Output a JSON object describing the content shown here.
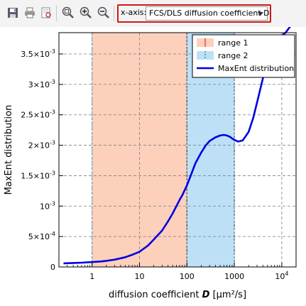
{
  "toolbar": {
    "buttons": [
      {
        "name": "save-icon"
      },
      {
        "name": "print-icon"
      },
      {
        "name": "print-preview-icon"
      },
      {
        "name": "zoom-fit-icon"
      },
      {
        "name": "zoom-in-icon"
      },
      {
        "name": "zoom-out-icon"
      }
    ],
    "xaxis_label": "x-axis:",
    "xaxis_value": "FCS/DLS diffusion coefficient D",
    "highlight_color": "#d01818"
  },
  "chart_data": {
    "type": "line",
    "xlabel_prefix": "diffusion coefficient ",
    "xlabel_var": "D",
    "xlabel_unit": " [µm²/s]",
    "ylabel": "MaxEnt distribution",
    "x_scale": "log",
    "xlim": [
      0.2,
      20000
    ],
    "ylim": [
      0,
      0.00385
    ],
    "xticks": [
      {
        "value": 1,
        "label": "1"
      },
      {
        "value": 10,
        "label": "10"
      },
      {
        "value": 100,
        "label": "100"
      },
      {
        "value": 1000,
        "label": "1000"
      },
      {
        "value": 10000,
        "label": "10",
        "sup": "4"
      }
    ],
    "yticks": [
      {
        "value": 0,
        "label": "0",
        "sup": ""
      },
      {
        "value": 0.0005,
        "label": "5×10",
        "sup": "-4"
      },
      {
        "value": 0.001,
        "label": "10",
        "sup": "-3"
      },
      {
        "value": 0.0015,
        "label": "1.5×10",
        "sup": "-3"
      },
      {
        "value": 0.002,
        "label": "2×10",
        "sup": "-3"
      },
      {
        "value": 0.0025,
        "label": "2.5×10",
        "sup": "-3"
      },
      {
        "value": 0.003,
        "label": "3×10",
        "sup": "-3"
      },
      {
        "value": 0.0035,
        "label": "3.5×10",
        "sup": "-3"
      }
    ],
    "grid": true,
    "legend_position": "top-right",
    "ranges": [
      {
        "name": "range 1",
        "x0": 1,
        "x1": 100,
        "fill": "#fdd0bc",
        "edge": "#e05050"
      },
      {
        "name": "range 2",
        "x0": 100,
        "x1": 1000,
        "fill": "#bde0f7",
        "edge": "#2a9a90"
      }
    ],
    "series": [
      {
        "name": "MaxEnt distribution",
        "color": "#0000e0",
        "x": [
          0.25,
          0.4,
          0.6,
          1,
          1.5,
          2,
          3,
          5,
          7,
          10,
          15,
          20,
          30,
          40,
          50,
          60,
          70,
          80,
          100,
          120,
          150,
          200,
          250,
          300,
          400,
          500,
          600,
          700,
          800,
          900,
          1000,
          1200,
          1500,
          2000,
          2500,
          3000,
          4000,
          5000,
          6000,
          7000,
          8000,
          10000,
          12000,
          15000,
          18000
        ],
        "y": [
          6e-05,
          6.5e-05,
          7e-05,
          8e-05,
          9e-05,
          0.0001,
          0.00012,
          0.00016,
          0.0002,
          0.00025,
          0.00035,
          0.00045,
          0.0006,
          0.00075,
          0.00088,
          0.001,
          0.0011,
          0.00118,
          0.00134,
          0.0015,
          0.0017,
          0.00188,
          0.002,
          0.00207,
          0.00213,
          0.00216,
          0.00217,
          0.00216,
          0.00214,
          0.00211,
          0.00209,
          0.00206,
          0.00208,
          0.00222,
          0.00245,
          0.0027,
          0.0031,
          0.0034,
          0.0036,
          0.0037,
          0.00375,
          0.0038,
          0.00385,
          0.00395,
          0.004
        ]
      }
    ]
  }
}
